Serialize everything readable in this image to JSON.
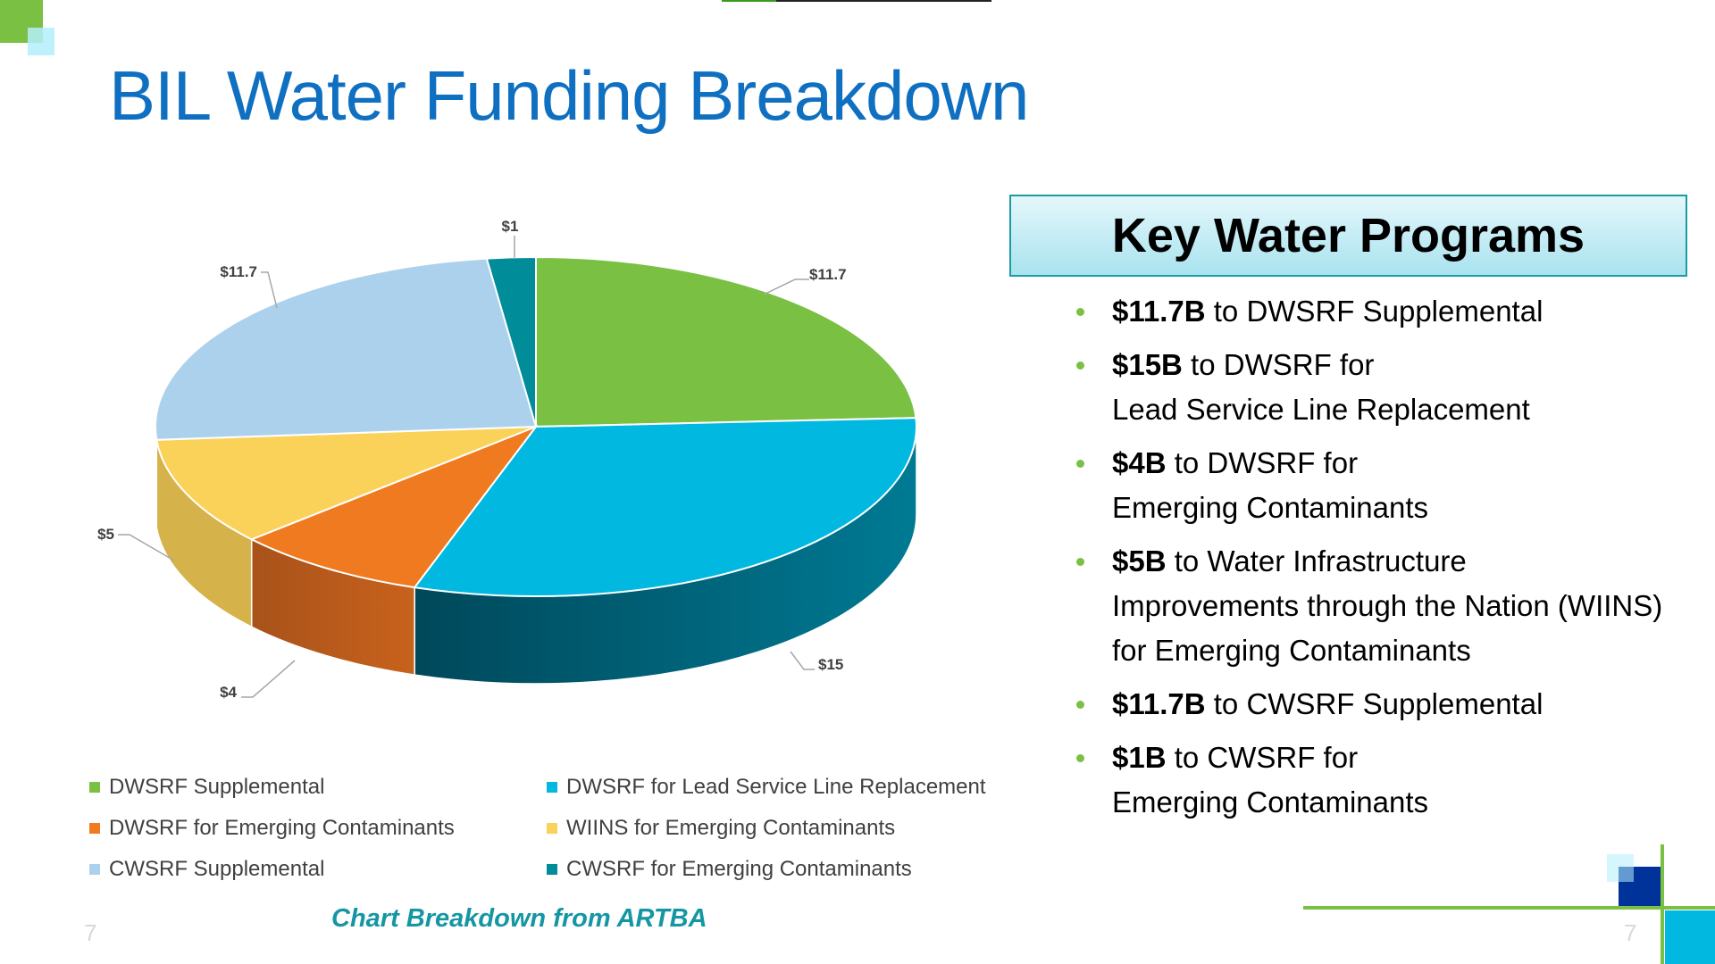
{
  "title": "BIL Water Funding Breakdown",
  "chart_data": {
    "type": "pie",
    "style": "3d",
    "categories": [
      "DWSRF Supplemental",
      "DWSRF for Lead Service Line Replacement",
      "DWSRF for Emerging Contaminants",
      "WIINS for Emerging Contaminants",
      "CWSRF Supplemental",
      "CWSRF for Emerging Contaminants"
    ],
    "values": [
      11.7,
      15,
      4,
      5,
      11.7,
      1
    ],
    "data_labels": [
      "$11.7",
      "$15",
      "$4",
      "$5",
      "$11.7",
      "$1"
    ],
    "colors": [
      "#7ac043",
      "#00b8e0",
      "#f07a20",
      "#fad25a",
      "#abd1ec",
      "#008c99"
    ],
    "side_colors": [
      "#5a9030",
      "#00485a",
      "#b0561a",
      "#d6b24a",
      "#7fa8c8",
      "#006a74"
    ],
    "legend_placement": "bottom"
  },
  "legend": [
    "DWSRF Supplemental",
    "DWSRF for Lead Service Line Replacement",
    "DWSRF for Emerging Contaminants",
    "WIINS for Emerging Contaminants",
    "CWSRF Supplemental",
    "CWSRF for Emerging Contaminants"
  ],
  "caption": "Chart Breakdown from ARTBA",
  "page_number": "7",
  "key_programs": {
    "heading": "Key Water Programs",
    "items": [
      {
        "bold": "$11.7B",
        "text": " to DWSRF Supplemental"
      },
      {
        "bold": "$15B",
        "text": " to DWSRF for",
        "cont": [
          "Lead Service Line Replacement"
        ]
      },
      {
        "bold": "$4B",
        "text": " to DWSRF for",
        "cont": [
          "Emerging Contaminants"
        ]
      },
      {
        "bold": "$5B",
        "text": " to Water Infrastructure",
        "cont": [
          "Improvements through the Nation (WIINS)",
          "for Emerging Contaminants"
        ]
      },
      {
        "bold": "$11.7B",
        "text": " to CWSRF Supplemental"
      },
      {
        "bold": "$1B",
        "text": " to CWSRF for",
        "cont": [
          "Emerging Contaminants"
        ]
      }
    ]
  },
  "decor_colors": {
    "green": "#7ac043",
    "light_cyan": "#bfeffc",
    "navy": "#003399",
    "cyan": "#00b8e0"
  }
}
